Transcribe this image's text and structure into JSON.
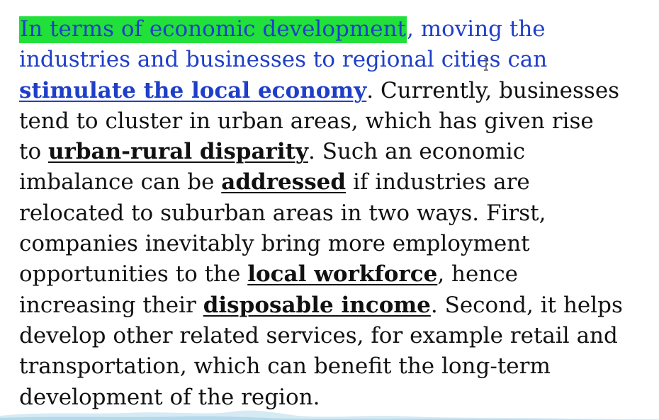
{
  "paragraph": {
    "lines": [
      {
        "highlight": "In terms of economic development",
        "rest": ", moving the"
      },
      {
        "text": "industries and businesses to regional cities can"
      },
      {
        "keyword": "stimulate the local economy",
        "rest": ". Currently, businesses"
      },
      {
        "text": "tend to cluster in urban areas, which has given rise"
      },
      {
        "pre": "to ",
        "keyword": "urban-rural disparity",
        "rest": ". Such an economic"
      },
      {
        "pre": "imbalance can be ",
        "keyword": "addressed",
        "rest": " if industries are"
      },
      {
        "text": "relocated to suburban areas in two ways. First,"
      },
      {
        "text": "companies inevitably bring more employment"
      },
      {
        "pre": "opportunities to the ",
        "keyword": "local workforce",
        "rest": ", hence"
      },
      {
        "pre": "increasing their ",
        "keyword": "disposable income",
        "rest": ". Second, it helps"
      },
      {
        "text": "develop other related services, for example retail and"
      },
      {
        "text": "transportation, which can benefit the long-term"
      },
      {
        "text": "development of the region."
      }
    ]
  },
  "colors": {
    "highlight": "#22e03a",
    "accent_text": "#1f3fc8",
    "body_text": "#111111"
  },
  "icons": {
    "cursor": "text-cursor-icon"
  }
}
